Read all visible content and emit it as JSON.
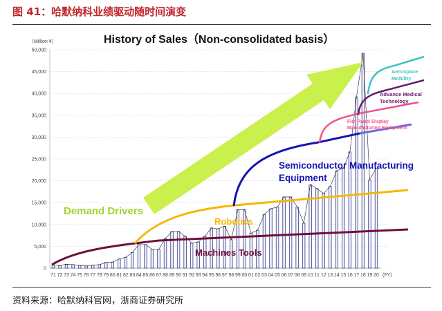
{
  "figure_title": "图 41：哈默纳科业绩驱动随时间演变",
  "source": "资料来源：哈默纳科官网，浙商证券研究所",
  "chart_data": {
    "type": "bar",
    "title": "History of Sales（Non-consolidated basis）",
    "unit_label": "（Million ¥）",
    "xlabel": "(FY)",
    "ylim": [
      0,
      50000
    ],
    "yticks": [
      "0",
      "5,000",
      "10,000",
      "15,000",
      "20,000",
      "25,000",
      "30,000",
      "35,000",
      "40,000",
      "45,000",
      "50,000"
    ],
    "grid": true,
    "categories": [
      "71",
      "72",
      "73",
      "74",
      "75",
      "76",
      "77",
      "78",
      "79",
      "80",
      "81",
      "82",
      "83",
      "84",
      "85",
      "86",
      "87",
      "88",
      "89",
      "90",
      "91",
      "'92",
      "93",
      "94",
      "95",
      "96",
      "97",
      "98",
      "99",
      "00",
      "01",
      "02",
      "03",
      "04",
      "05",
      "06",
      "07",
      "08",
      "09",
      "10",
      "11",
      "12",
      "13",
      "14",
      "15",
      "16",
      "17",
      "18",
      "19",
      "20"
    ],
    "values": [
      700,
      600,
      900,
      800,
      600,
      500,
      700,
      800,
      1300,
      1400,
      2100,
      2500,
      3600,
      5400,
      5400,
      4300,
      4300,
      6800,
      8400,
      8400,
      7300,
      5700,
      6000,
      7300,
      9200,
      9000,
      9600,
      6500,
      13400,
      13400,
      8000,
      8700,
      12300,
      13600,
      14000,
      16300,
      16300,
      14000,
      10300,
      19100,
      18200,
      17100,
      18700,
      22300,
      22900,
      26600,
      39200,
      49200,
      20200,
      22900
    ],
    "annotations": {
      "arrow": "Demand Drivers",
      "machine_tools": "Machines Tools",
      "robotics": "Robotics",
      "semiconductor_1": "Semiconductor Manufacturing",
      "semiconductor_2": "Equipment",
      "fpd_1": "Flat Panel Display",
      "fpd_2": "Manufacturing Equipment",
      "medical_1": "Advance Medical",
      "medical_2": "Technology",
      "aerospace_1": "Aerospace",
      "aerospace_2": "Mobility"
    },
    "colors": {
      "bars": "#3a3a8c",
      "arrow": "#c4ee3a",
      "machine_tools": "#6e0f3c",
      "robotics": "#f5b800",
      "semiconductor": "#1414b4",
      "fpd": "#f0508a",
      "medical": "#6a1a6a",
      "aerospace": "#3cc4c4"
    }
  }
}
